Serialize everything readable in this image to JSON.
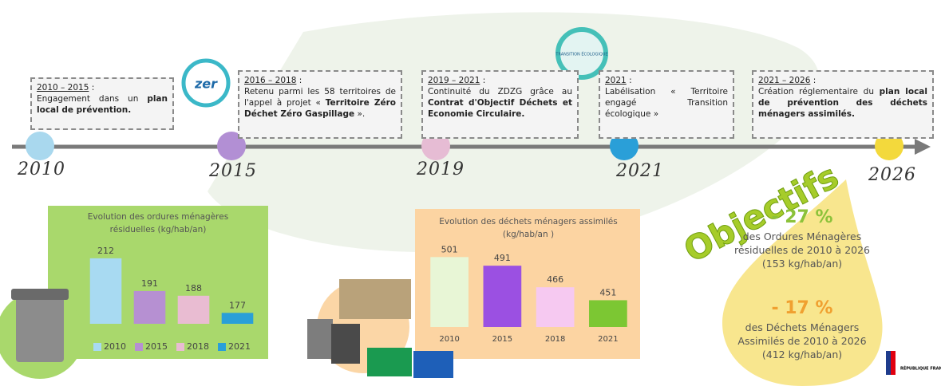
{
  "timeline": {
    "years": [
      "2010",
      "2015",
      "2019",
      "2021",
      "2026"
    ],
    "events": [
      {
        "period": "2010 – 2015",
        "text": [
          "Engagement dans un ",
          "plan local de prévention."
        ]
      },
      {
        "period": "2016 – 2018",
        "text": [
          "Retenu parmi les 58 territoires de l'appel à projet « ",
          "Territoire Zéro Déchet Zéro Gaspillage",
          " »."
        ]
      },
      {
        "period": "2019 – 2021",
        "text": [
          "Continuité du ZDZG grâce au ",
          "Contrat d'Objectif Déchets et Economie Circulaire."
        ]
      },
      {
        "period": "2021",
        "text": [
          "Labélisation « Territoire engagé Transition écologique »"
        ]
      },
      {
        "period": "2021 – 2026",
        "text": [
          "Création réglementaire du ",
          "plan local de prévention des déchets ménagers assimilés."
        ]
      }
    ],
    "badges": [
      "zer",
      "TRANSITION ÉCOLOGIQUE"
    ]
  },
  "chart_data": [
    {
      "type": "bar",
      "title": "Evolution des ordures ménagères résiduelles (kg/hab/an)",
      "categories": [
        "2010",
        "2015",
        "2018",
        "2021"
      ],
      "values": [
        212,
        191,
        188,
        177
      ],
      "colors": [
        "#a8daf2",
        "#b690d2",
        "#e9bcd2",
        "#2a9fd8"
      ],
      "ylim": [
        170,
        215
      ],
      "legend": "bottom"
    },
    {
      "type": "bar",
      "title": "Evolution des déchets ménagers assimilés (kg/hab/an )",
      "categories": [
        "2010",
        "2015",
        "2018",
        "2021"
      ],
      "values": [
        501,
        491,
        466,
        451
      ],
      "colors": [
        "#e8f6d6",
        "#9b50e2",
        "#f6c9f1",
        "#7cc733"
      ],
      "ylim": [
        420,
        505
      ]
    }
  ],
  "objectives": {
    "title": "Objectifs",
    "items": [
      {
        "change": "- 27 %",
        "text": "des Ordures Ménagères résiduelles de 2010 à 2026",
        "target": "(153 kg/hab/an)"
      },
      {
        "change": "- 17 %",
        "text": "des Déchets Ménagers Assimilés de 2010 à 2026",
        "target": "(412 kg/hab/an)"
      }
    ]
  },
  "logo": "RÉPUBLIQUE FRANÇAISE"
}
